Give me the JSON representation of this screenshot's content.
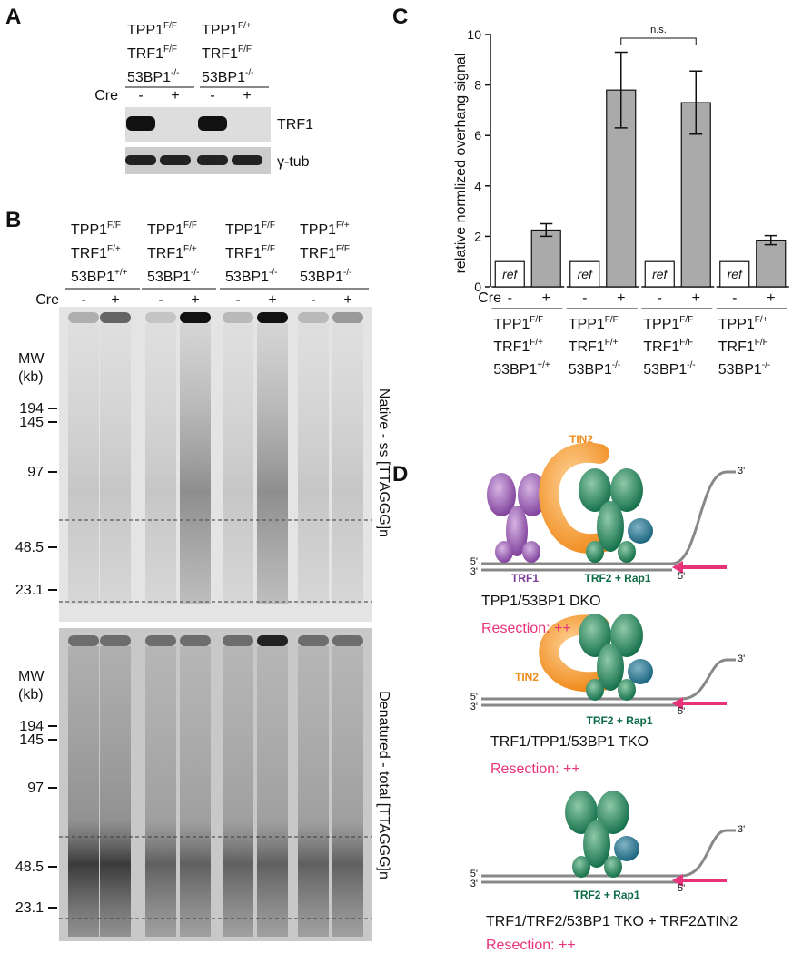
{
  "panel_a": {
    "label": "A",
    "groups": [
      [
        {
          "text": "TPP1",
          "sup": "F/F"
        },
        {
          "text": "TRF1",
          "sup": "F/F"
        },
        {
          "text": "53BP1",
          "sup": "-/-"
        }
      ],
      [
        {
          "text": "TPP1",
          "sup": "F/+"
        },
        {
          "text": "TRF1",
          "sup": "F/F"
        },
        {
          "text": "53BP1",
          "sup": "-/-"
        }
      ]
    ],
    "cre_label": "Cre",
    "lanes": [
      "-",
      "+",
      "-",
      "+"
    ],
    "blots": [
      "TRF1",
      "γ-tub"
    ]
  },
  "panel_b": {
    "label": "B",
    "groups": [
      [
        {
          "text": "TPP1",
          "sup": "F/F"
        },
        {
          "text": "TRF1",
          "sup": "F/+"
        },
        {
          "text": "53BP1",
          "sup": "+/+"
        }
      ],
      [
        {
          "text": "TPP1",
          "sup": "F/F"
        },
        {
          "text": "TRF1",
          "sup": "F/+"
        },
        {
          "text": "53BP1",
          "sup": "-/-"
        }
      ],
      [
        {
          "text": "TPP1",
          "sup": "F/F"
        },
        {
          "text": "TRF1",
          "sup": "F/F"
        },
        {
          "text": "53BP1",
          "sup": "-/-"
        }
      ],
      [
        {
          "text": "TPP1",
          "sup": "F/+"
        },
        {
          "text": "TRF1",
          "sup": "F/F"
        },
        {
          "text": "53BP1",
          "sup": "-/-"
        }
      ]
    ],
    "cre_label": "Cre",
    "lanes": [
      "-",
      "+",
      "-",
      "+",
      "-",
      "+",
      "-",
      "+"
    ],
    "mw_title": [
      "MW",
      "(kb)"
    ],
    "markers": [
      "194",
      "145",
      "97",
      "48.5",
      "23.1"
    ],
    "gels": [
      "Native - ss [TTAGGG]n",
      "Denatured - total [TTAGGG]n"
    ]
  },
  "chart_data": {
    "type": "bar",
    "label": "C",
    "y_label": "relative normlized overhang signal",
    "x_row_label": "Cre",
    "ref_label": "ref",
    "categories": [
      [
        {
          "text": "TPP1",
          "sup": "F/F"
        },
        {
          "text": "TRF1",
          "sup": "F/+"
        },
        {
          "text": "53BP1",
          "sup": "+/+"
        }
      ],
      [
        {
          "text": "TPP1",
          "sup": "F/F"
        },
        {
          "text": "TRF1",
          "sup": "F/+"
        },
        {
          "text": "53BP1",
          "sup": "-/-"
        }
      ],
      [
        {
          "text": "TPP1",
          "sup": "F/F"
        },
        {
          "text": "TRF1",
          "sup": "F/F"
        },
        {
          "text": "53BP1",
          "sup": "-/-"
        }
      ],
      [
        {
          "text": "TPP1",
          "sup": "F/+"
        },
        {
          "text": "TRF1",
          "sup": "F/F"
        },
        {
          "text": "53BP1",
          "sup": "-/-"
        }
      ]
    ],
    "series": [
      {
        "name": "-",
        "color": "#ffffff",
        "values": [
          1,
          1,
          1,
          1
        ]
      },
      {
        "name": "+",
        "color": "#aaaaaa",
        "values": [
          2.25,
          7.8,
          7.3,
          1.85
        ],
        "errors": [
          0.25,
          1.5,
          1.25,
          0.18
        ]
      }
    ],
    "ylim": [
      0,
      10
    ],
    "yticks": [
      0,
      2,
      4,
      6,
      8,
      10
    ],
    "annotation": "n.s."
  },
  "panel_d": {
    "label": "D",
    "diagrams": [
      {
        "proteins": [
          "TIN2",
          "TRF1",
          "TRF2 + Rap1"
        ],
        "caption": "TPP1/53BP1 DKO",
        "result": "Resection: ++"
      },
      {
        "proteins": [
          "TIN2",
          "TRF2 + Rap1"
        ],
        "caption": "TRF1/TPP1/53BP1 TKO",
        "result": "Resection: ++"
      },
      {
        "proteins": [
          "TRF2 + Rap1"
        ],
        "caption": "TRF1/TRF2/53BP1 TKO + TRF2ΔTIN2",
        "result": "Resection: ++"
      }
    ],
    "ends": [
      "5'",
      "3'"
    ]
  }
}
